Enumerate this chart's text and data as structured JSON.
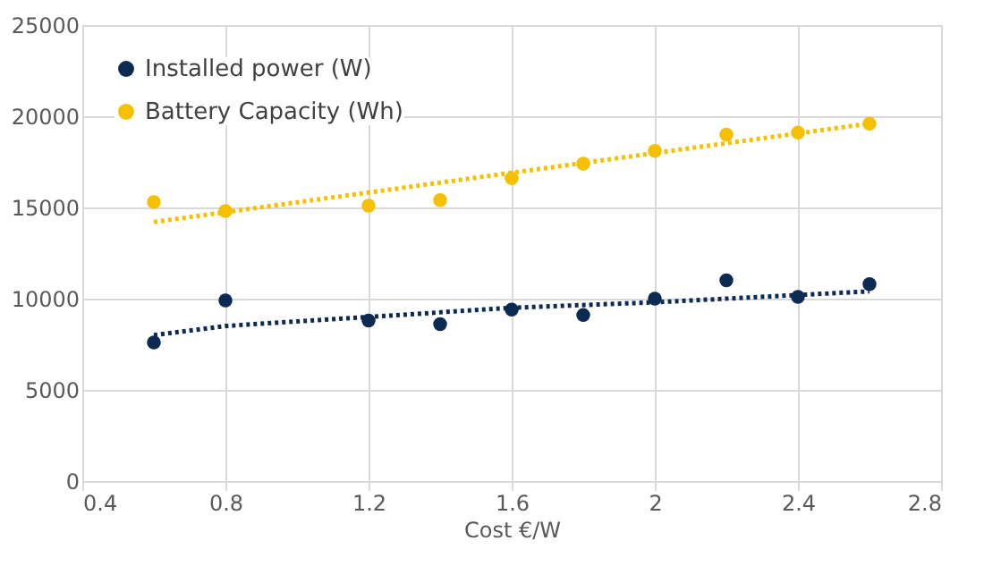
{
  "chart_data": {
    "type": "scatter",
    "xlabel": "Cost €/W",
    "x": [
      0.6,
      0.8,
      1.2,
      1.4,
      1.6,
      1.8,
      2.0,
      2.2,
      2.4,
      2.6
    ],
    "series": [
      {
        "name": "Installed power (W)",
        "color": "#0d2a52",
        "marker": "circle",
        "values": [
          7600,
          9900,
          8800,
          8600,
          9400,
          9100,
          10000,
          11000,
          10100,
          10800
        ]
      },
      {
        "name": "Battery Capacity (Wh)",
        "color": "#f5c000",
        "marker": "circle",
        "values": [
          15300,
          14800,
          15100,
          15400,
          16600,
          17400,
          18100,
          19000,
          19100,
          19600
        ]
      },
      {
        "type": "line",
        "color": "#0d2a52",
        "line_style": "dotted",
        "x": [
          0.6,
          0.8,
          1.2,
          1.6,
          2.0,
          2.4,
          2.6
        ],
        "values": [
          8000,
          8500,
          9000,
          9500,
          9800,
          10200,
          10400
        ]
      },
      {
        "type": "line",
        "color": "#f5c000",
        "line_style": "dotted",
        "x": [
          0.6,
          2.6
        ],
        "values": [
          14200,
          19600
        ]
      }
    ],
    "xlim": [
      0.4,
      2.8
    ],
    "xticks": [
      0.4,
      0.8,
      1.2,
      1.6,
      2,
      2.4,
      2.8
    ],
    "ylim": [
      0,
      25000
    ],
    "yticks": [
      0,
      5000,
      10000,
      15000,
      20000,
      25000
    ],
    "grid": true,
    "legend": "top left"
  }
}
